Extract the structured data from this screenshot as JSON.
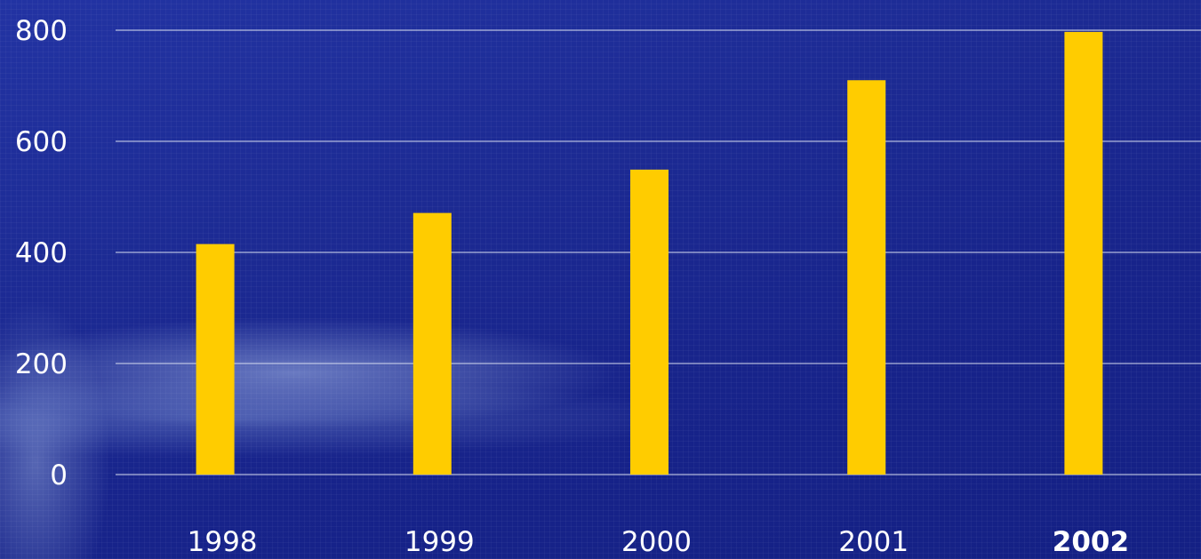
{
  "chart_data": {
    "type": "bar",
    "categories": [
      "1998",
      "1999",
      "2000",
      "2001",
      "2002"
    ],
    "values": [
      415,
      471,
      549,
      710,
      797
    ],
    "title": "",
    "xlabel": "",
    "ylabel": "",
    "ylim": [
      0,
      800
    ],
    "yticks": [
      "0",
      "200",
      "400",
      "600",
      "800"
    ],
    "grid": true,
    "legend": "none",
    "bar_color": "#ffcc00",
    "grid_color": "#d8def0",
    "emphasized_category": "2002"
  }
}
